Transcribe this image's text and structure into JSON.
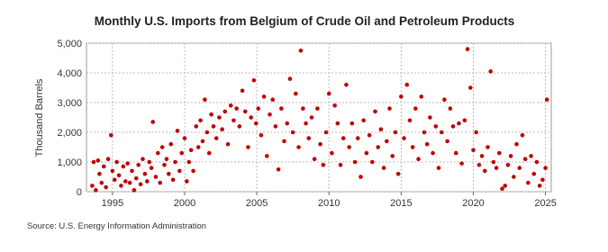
{
  "chart_data": {
    "type": "scatter",
    "title": "Monthly U.S. Imports from Belgium of Crude Oil and Petroleum Products",
    "y_label": "Thousand Barrels",
    "source": "Source: U.S. Energy Information Administration",
    "color": "#c00000",
    "grid": true,
    "xlim": [
      1993.2,
      2025.4
    ],
    "xticks": [
      1995,
      2000,
      2005,
      2010,
      2015,
      2020,
      2025
    ],
    "ylim": [
      0,
      5000
    ],
    "yticks": [
      0,
      {
        "value": 1000,
        "label": "1,000"
      },
      {
        "value": 2000,
        "label": "2,000"
      },
      {
        "value": 3000,
        "label": "3,000"
      },
      {
        "value": 4000,
        "label": "4,000"
      },
      {
        "value": 5000,
        "label": "5,000"
      }
    ],
    "x": [
      1993.6,
      1993.7,
      1993.85,
      1994.0,
      1994.1,
      1994.25,
      1994.4,
      1994.55,
      1994.7,
      1994.9,
      1995.0,
      1995.15,
      1995.3,
      1995.45,
      1995.6,
      1995.75,
      1995.9,
      1996.05,
      1996.2,
      1996.35,
      1996.5,
      1996.65,
      1996.8,
      1996.95,
      1997.1,
      1997.25,
      1997.4,
      1997.55,
      1997.7,
      1997.8,
      1998.0,
      1998.15,
      1998.3,
      1998.45,
      1998.6,
      1998.75,
      1998.9,
      1999.05,
      1999.2,
      1999.35,
      1999.5,
      1999.65,
      1999.8,
      2000.0,
      2000.15,
      2000.3,
      2000.45,
      2000.6,
      2000.8,
      2000.95,
      2001.1,
      2001.25,
      2001.4,
      2001.55,
      2001.7,
      2001.85,
      2002.0,
      2002.2,
      2002.4,
      2002.6,
      2002.8,
      2003.0,
      2003.2,
      2003.4,
      2003.6,
      2003.8,
      2004.0,
      2004.2,
      2004.4,
      2004.6,
      2004.8,
      2004.95,
      2005.1,
      2005.3,
      2005.5,
      2005.7,
      2005.9,
      2006.1,
      2006.3,
      2006.5,
      2006.7,
      2006.9,
      2007.1,
      2007.3,
      2007.5,
      2007.7,
      2007.9,
      2008.05,
      2008.2,
      2008.4,
      2008.6,
      2008.8,
      2009.0,
      2009.2,
      2009.4,
      2009.6,
      2009.8,
      2010.0,
      2010.2,
      2010.4,
      2010.6,
      2010.8,
      2011.0,
      2011.2,
      2011.4,
      2011.6,
      2011.8,
      2012.0,
      2012.2,
      2012.4,
      2012.6,
      2012.8,
      2013.0,
      2013.2,
      2013.4,
      2013.6,
      2013.8,
      2014.0,
      2014.2,
      2014.4,
      2014.6,
      2014.8,
      2015.0,
      2015.2,
      2015.4,
      2015.6,
      2015.8,
      2016.0,
      2016.2,
      2016.4,
      2016.6,
      2016.8,
      2017.0,
      2017.2,
      2017.4,
      2017.6,
      2017.8,
      2018.0,
      2018.2,
      2018.4,
      2018.6,
      2018.8,
      2019.0,
      2019.2,
      2019.4,
      2019.6,
      2019.8,
      2020.0,
      2020.2,
      2020.4,
      2020.6,
      2020.8,
      2021.0,
      2021.2,
      2021.4,
      2021.6,
      2021.8,
      2022.0,
      2022.2,
      2022.4,
      2022.6,
      2022.8,
      2023.0,
      2023.2,
      2023.4,
      2023.6,
      2023.8,
      2024.0,
      2024.2,
      2024.4,
      2024.6,
      2024.8,
      2025.0,
      2025.1
    ],
    "values": [
      200,
      1000,
      50,
      1050,
      600,
      300,
      850,
      150,
      1100,
      1900,
      700,
      400,
      1000,
      550,
      200,
      850,
      350,
      950,
      300,
      700,
      50,
      450,
      900,
      250,
      1100,
      600,
      350,
      1000,
      800,
      2350,
      500,
      1300,
      300,
      1500,
      900,
      1100,
      600,
      1600,
      400,
      1000,
      2050,
      700,
      1300,
      1800,
      350,
      1000,
      1400,
      700,
      2200,
      1500,
      2400,
      1700,
      3100,
      2000,
      1300,
      2600,
      2200,
      1800,
      2500,
      2100,
      2700,
      1600,
      2900,
      2400,
      2800,
      2200,
      3400,
      2700,
      1500,
      2500,
      3750,
      2300,
      2800,
      1900,
      3200,
      1200,
      2600,
      3100,
      2200,
      750,
      2800,
      1700,
      2300,
      3800,
      2000,
      3300,
      1500,
      4750,
      2800,
      2300,
      1800,
      2500,
      1100,
      2800,
      1600,
      900,
      2000,
      3300,
      1300,
      2900,
      2300,
      900,
      1800,
      3600,
      1500,
      2300,
      1000,
      1800,
      500,
      2400,
      1300,
      1900,
      1000,
      2700,
      1500,
      2100,
      800,
      1700,
      2800,
      1200,
      2000,
      600,
      3200,
      1800,
      3600,
      2400,
      1500,
      2800,
      1100,
      3200,
      2000,
      1600,
      2500,
      1300,
      2200,
      800,
      2000,
      3100,
      1700,
      2800,
      2200,
      1300,
      2300,
      950,
      2400,
      4800,
      3500,
      1400,
      2000,
      900,
      1200,
      700,
      1500,
      4050,
      1000,
      800,
      1300,
      100,
      200,
      900,
      1200,
      500,
      1600,
      800,
      1900,
      1100,
      300,
      1200,
      600,
      1000,
      200,
      400,
      800,
      3100
    ]
  }
}
